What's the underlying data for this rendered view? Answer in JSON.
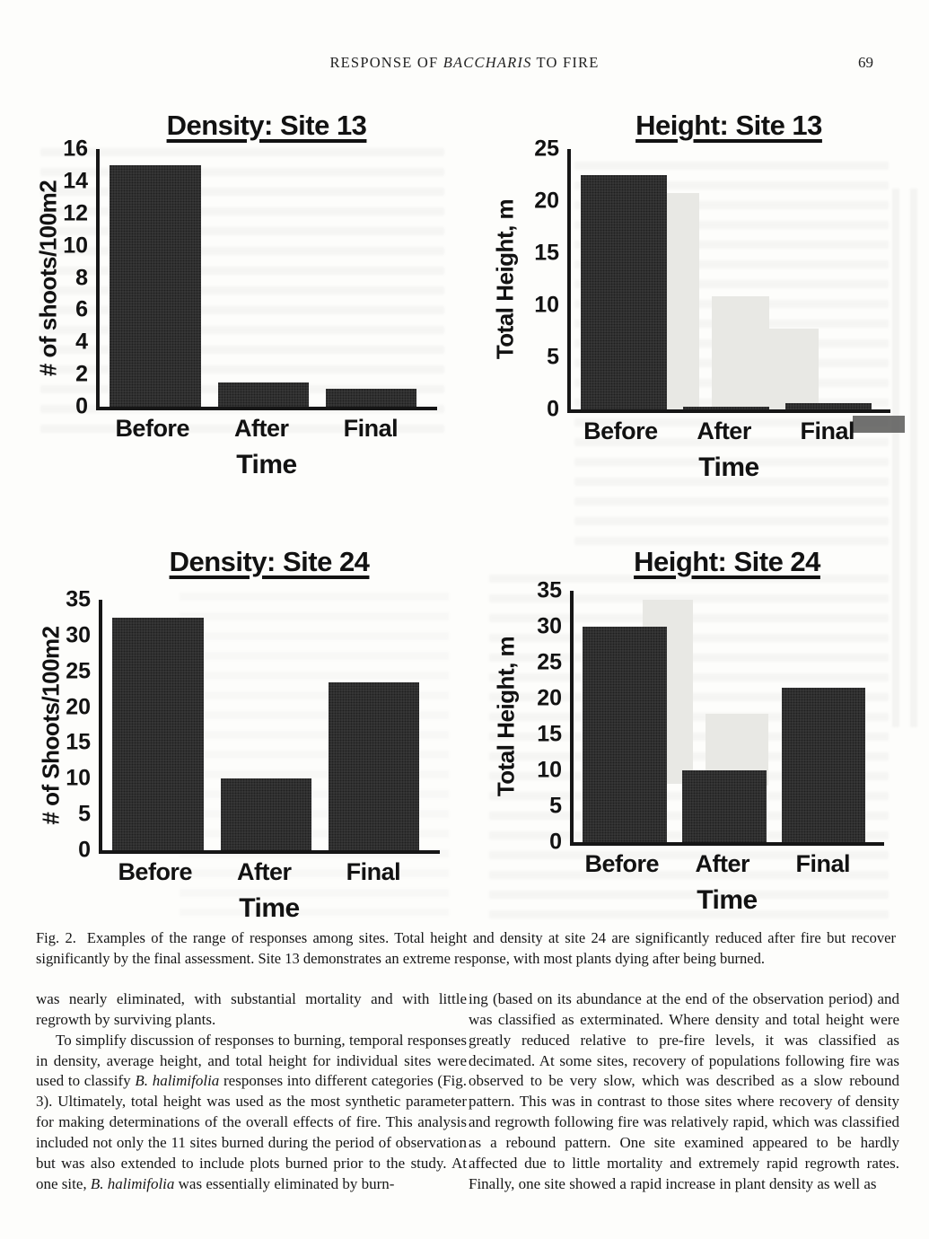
{
  "header": {
    "title_pre": "RESPONSE OF ",
    "title_italic": "BACCHARIS",
    "title_post": " TO FIRE",
    "page_number": "69"
  },
  "colors": {
    "bar": "#3b3b3b",
    "axis": "#161616",
    "ghost_bar": "#e8e8e4",
    "page_background": "#fdfdfb"
  },
  "chart_data": [
    {
      "type": "bar",
      "title": "Density: Site 13",
      "categories": [
        "Before",
        "After",
        "Final"
      ],
      "values": [
        15,
        1.5,
        1.1
      ],
      "xlabel": "Time",
      "ylabel": "# of  shoots/100m2",
      "ylim": [
        0,
        16
      ],
      "yticks": [
        0,
        2,
        4,
        6,
        8,
        10,
        12,
        14,
        16
      ],
      "grid": false,
      "legend": false
    },
    {
      "type": "bar",
      "title": "Height: Site 13",
      "categories": [
        "Before",
        "After",
        "Final"
      ],
      "values": [
        22.5,
        0.3,
        0.6
      ],
      "xlabel": "Time",
      "ylabel": "Total Height, m",
      "ylim": [
        0,
        25
      ],
      "yticks": [
        0,
        5,
        10,
        15,
        20,
        25
      ],
      "grid": false,
      "legend": false
    },
    {
      "type": "bar",
      "title": "Density: Site 24",
      "categories": [
        "Before",
        "After",
        "Final"
      ],
      "values": [
        32.5,
        10,
        23.5
      ],
      "xlabel": "Time",
      "ylabel": "# of  Shoots/100m2",
      "ylim": [
        0,
        35
      ],
      "yticks": [
        0,
        5,
        10,
        15,
        20,
        25,
        30,
        35
      ],
      "grid": false,
      "legend": false
    },
    {
      "type": "bar",
      "title": "Height: Site 24",
      "categories": [
        "Before",
        "After",
        "Final"
      ],
      "values": [
        30,
        10,
        21.5
      ],
      "xlabel": "Time",
      "ylabel": "Total Height, m",
      "ylim": [
        0,
        35
      ],
      "yticks": [
        0,
        5,
        10,
        15,
        20,
        25,
        30,
        35
      ],
      "grid": false,
      "legend": false
    }
  ],
  "caption": {
    "label": "Fig. 2.",
    "text": "Examples of the range of responses among sites. Total height and density at site 24 are significantly reduced after fire but recover significantly by the final assessment. Site 13 demonstrates an extreme response, with most plants dying after being burned."
  },
  "body": {
    "left_column": [
      {
        "indent": false,
        "segments": [
          {
            "text": "was nearly eliminated, with substantial mortality and with little regrowth by surviving plants."
          }
        ]
      },
      {
        "indent": true,
        "segments": [
          {
            "text": "To simplify discussion of responses to burning, temporal responses in density, average height, and total height for individual sites were used to classify "
          },
          {
            "text": "B. halimifolia",
            "italic": true
          },
          {
            "text": " responses into different categories (Fig. 3). Ultimately, total height was used as the most synthetic parameter for making determinations of the overall effects of fire. This analysis included not only the 11 sites burned during the period of observation but was also extended to include plots burned prior to the study. At one site, "
          },
          {
            "text": "B. halimifolia",
            "italic": true
          },
          {
            "text": " was essentially eliminated by burn-"
          }
        ]
      }
    ],
    "right_column": [
      {
        "indent": false,
        "segments": [
          {
            "text": "ing (based on its abundance at the end of the observation period) and was classified as exterminated. Where density and total height were greatly reduced relative to pre-fire levels, it was classified as decimated. At some sites, recovery of populations following fire was observed to be very slow, which was described as a slow rebound pattern. This was in contrast to those sites where recovery of density and regrowth following fire was relatively rapid, which was classified as a rebound pattern. One site examined appeared to be hardly affected due to little mortality and extremely rapid regrowth rates. Finally, one site showed a rapid increase in plant density as well as"
          }
        ]
      }
    ]
  }
}
